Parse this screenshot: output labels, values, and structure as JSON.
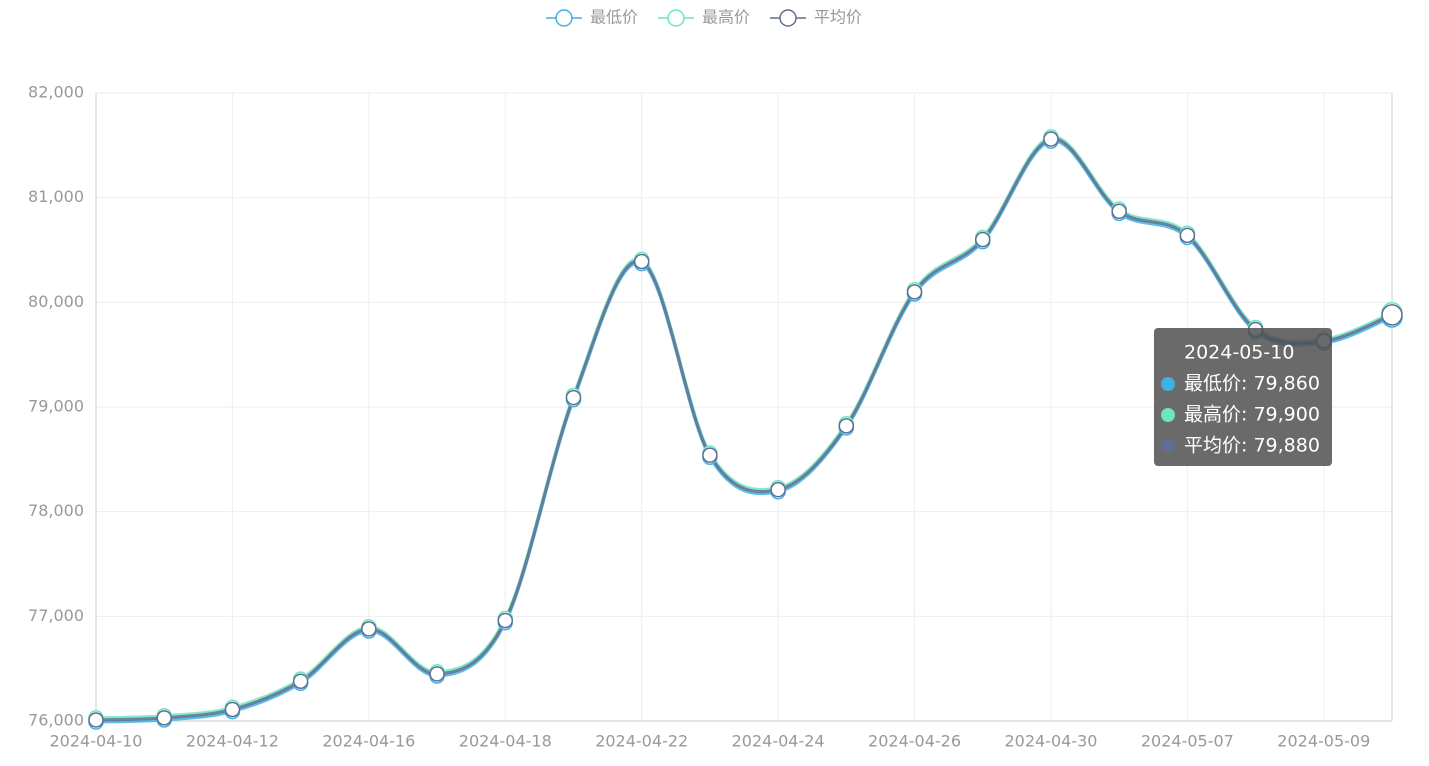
{
  "chart_data": {
    "type": "line",
    "categories": [
      "2024-04-10",
      null,
      "2024-04-12",
      null,
      "2024-04-16",
      null,
      "2024-04-18",
      null,
      "2024-04-22",
      null,
      "2024-04-24",
      null,
      "2024-04-26",
      null,
      "2024-04-30",
      null,
      "2024-05-07",
      null,
      "2024-05-09",
      null
    ],
    "series": [
      {
        "name": "最低价",
        "color": "#3fb1e3",
        "values": [
          75990,
          76010,
          76090,
          76360,
          76860,
          76430,
          76940,
          79070,
          80370,
          78520,
          78190,
          78800,
          80080,
          80580,
          81540,
          80850,
          80620,
          79720,
          79610,
          79860
        ]
      },
      {
        "name": "最高价",
        "color": "#6be6c1",
        "values": [
          76030,
          76050,
          76130,
          76400,
          76900,
          76470,
          76980,
          79110,
          80410,
          78560,
          78230,
          78840,
          80120,
          80620,
          81580,
          80890,
          80660,
          79760,
          79650,
          79900
        ]
      },
      {
        "name": "平均价",
        "color": "#626c91",
        "values": [
          76010,
          76030,
          76110,
          76380,
          76880,
          76450,
          76960,
          79090,
          80390,
          78540,
          78210,
          78820,
          80100,
          80600,
          81560,
          80870,
          80640,
          79740,
          79630,
          79880
        ]
      }
    ],
    "ylim": [
      76000,
      82000
    ],
    "yticks": [
      {
        "value": 76000,
        "label": "76,000"
      },
      {
        "value": 77000,
        "label": "77,000"
      },
      {
        "value": 78000,
        "label": "78,000"
      },
      {
        "value": 79000,
        "label": "79,000"
      },
      {
        "value": 80000,
        "label": "80,000"
      },
      {
        "value": 81000,
        "label": "81,000"
      },
      {
        "value": 82000,
        "label": "82,000"
      }
    ],
    "grid": true,
    "smooth": true,
    "legend": "top",
    "tooltip": {
      "title": "2024-05-10",
      "rows": [
        "最低价: 79,860",
        "最高价: 79,900",
        "平均价: 79,880"
      ]
    }
  }
}
